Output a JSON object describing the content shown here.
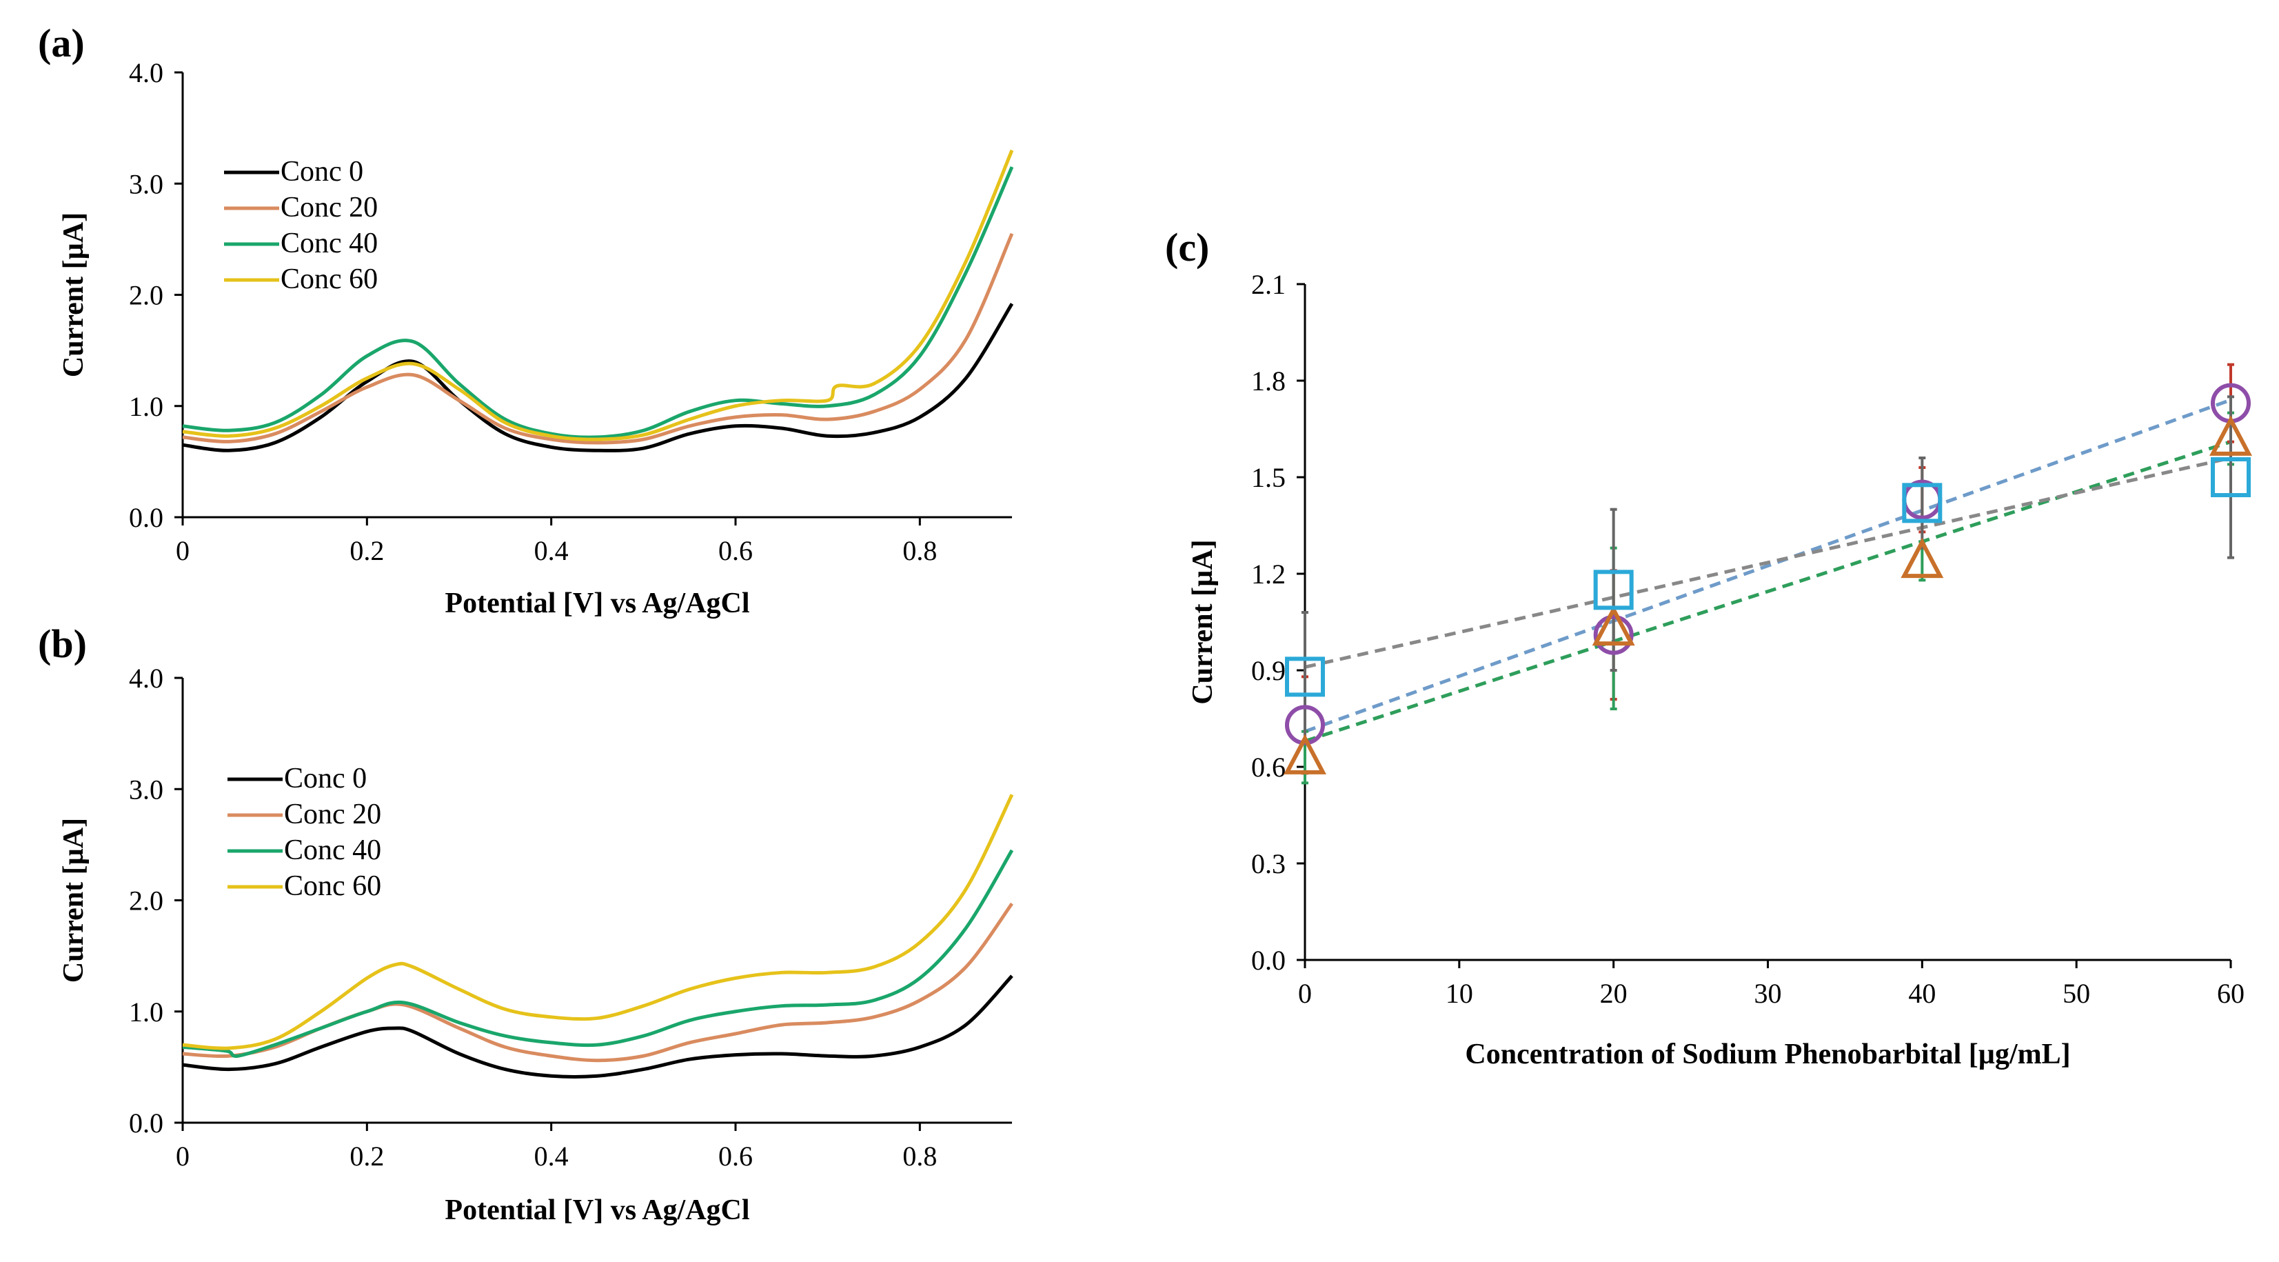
{
  "figure": {
    "panels": [
      "(a)",
      "(b)",
      "(c)"
    ]
  },
  "chart_data": [
    {
      "id": "a",
      "type": "line",
      "panel_label": "(a)",
      "title": "",
      "xlabel": "Potential [V] vs Ag/AgCl",
      "ylabel": "Current [µA]",
      "xlim": [
        0,
        0.9
      ],
      "ylim": [
        0,
        4.0
      ],
      "xticks": [
        0,
        0.2,
        0.4,
        0.6,
        0.8
      ],
      "xtick_labels": [
        "0",
        "0.2",
        "0.4",
        "0.6",
        "0.8"
      ],
      "yticks": [
        0,
        1,
        2,
        3,
        4
      ],
      "ytick_labels": [
        "0.0",
        "1.0",
        "2.0",
        "3.0",
        "4.0"
      ],
      "grid": false,
      "legend_position": "upper-left",
      "series": [
        {
          "name": "Conc 0",
          "color": "#000000",
          "x": [
            0,
            0.05,
            0.1,
            0.15,
            0.2,
            0.25,
            0.3,
            0.35,
            0.4,
            0.45,
            0.5,
            0.55,
            0.6,
            0.65,
            0.7,
            0.75,
            0.8,
            0.85,
            0.9
          ],
          "y": [
            0.65,
            0.6,
            0.67,
            0.9,
            1.22,
            1.4,
            1.05,
            0.75,
            0.63,
            0.6,
            0.62,
            0.75,
            0.82,
            0.8,
            0.73,
            0.76,
            0.9,
            1.25,
            1.92
          ]
        },
        {
          "name": "Conc 20",
          "color": "#D98B5F",
          "x": [
            0,
            0.05,
            0.1,
            0.15,
            0.2,
            0.25,
            0.3,
            0.35,
            0.4,
            0.45,
            0.5,
            0.55,
            0.6,
            0.65,
            0.7,
            0.75,
            0.8,
            0.85,
            0.9
          ],
          "y": [
            0.72,
            0.68,
            0.75,
            0.95,
            1.17,
            1.28,
            1.05,
            0.8,
            0.7,
            0.67,
            0.7,
            0.82,
            0.9,
            0.92,
            0.88,
            0.95,
            1.15,
            1.6,
            2.55
          ]
        },
        {
          "name": "Conc 40",
          "color": "#1AA66B",
          "x": [
            0,
            0.05,
            0.1,
            0.15,
            0.2,
            0.25,
            0.3,
            0.35,
            0.4,
            0.45,
            0.5,
            0.55,
            0.6,
            0.65,
            0.7,
            0.75,
            0.8,
            0.85,
            0.9
          ],
          "y": [
            0.82,
            0.78,
            0.85,
            1.1,
            1.45,
            1.58,
            1.2,
            0.88,
            0.75,
            0.72,
            0.78,
            0.95,
            1.05,
            1.02,
            1.0,
            1.1,
            1.45,
            2.2,
            3.15
          ]
        },
        {
          "name": "Conc 60",
          "color": "#E6C21A",
          "x": [
            0,
            0.05,
            0.1,
            0.15,
            0.2,
            0.25,
            0.3,
            0.35,
            0.4,
            0.45,
            0.5,
            0.55,
            0.6,
            0.65,
            0.7,
            0.71,
            0.75,
            0.8,
            0.85,
            0.9
          ],
          "y": [
            0.77,
            0.73,
            0.8,
            1.0,
            1.25,
            1.38,
            1.15,
            0.85,
            0.73,
            0.7,
            0.74,
            0.88,
            1.0,
            1.05,
            1.05,
            1.18,
            1.2,
            1.55,
            2.3,
            3.3
          ]
        }
      ]
    },
    {
      "id": "b",
      "type": "line",
      "panel_label": "(b)",
      "title": "",
      "xlabel": "Potential [V] vs Ag/AgCl",
      "ylabel": "Current [µA]",
      "xlim": [
        0,
        0.9
      ],
      "ylim": [
        0,
        4.0
      ],
      "xticks": [
        0,
        0.2,
        0.4,
        0.6,
        0.8
      ],
      "xtick_labels": [
        "0",
        "0.2",
        "0.4",
        "0.6",
        "0.8"
      ],
      "yticks": [
        0,
        1,
        2,
        3,
        4
      ],
      "ytick_labels": [
        "0.0",
        "1.0",
        "2.0",
        "3.0",
        "4.0"
      ],
      "grid": false,
      "legend_position": "upper-left",
      "series": [
        {
          "name": "Conc 0",
          "color": "#000000",
          "x": [
            0,
            0.05,
            0.1,
            0.15,
            0.2,
            0.23,
            0.25,
            0.3,
            0.35,
            0.4,
            0.45,
            0.5,
            0.55,
            0.6,
            0.65,
            0.7,
            0.75,
            0.8,
            0.85,
            0.9
          ],
          "y": [
            0.52,
            0.48,
            0.53,
            0.68,
            0.82,
            0.85,
            0.82,
            0.62,
            0.48,
            0.42,
            0.42,
            0.48,
            0.57,
            0.61,
            0.62,
            0.6,
            0.6,
            0.68,
            0.88,
            1.32
          ]
        },
        {
          "name": "Conc 20",
          "color": "#D98B5F",
          "x": [
            0,
            0.05,
            0.1,
            0.15,
            0.2,
            0.24,
            0.3,
            0.35,
            0.4,
            0.45,
            0.5,
            0.55,
            0.6,
            0.65,
            0.7,
            0.75,
            0.8,
            0.85,
            0.9
          ],
          "y": [
            0.62,
            0.6,
            0.68,
            0.85,
            1.0,
            1.06,
            0.85,
            0.68,
            0.6,
            0.56,
            0.6,
            0.72,
            0.8,
            0.88,
            0.9,
            0.95,
            1.1,
            1.4,
            1.97
          ]
        },
        {
          "name": "Conc 40",
          "color": "#1AA66B",
          "x": [
            0,
            0.03,
            0.05,
            0.06,
            0.1,
            0.15,
            0.2,
            0.24,
            0.3,
            0.35,
            0.4,
            0.45,
            0.5,
            0.55,
            0.6,
            0.65,
            0.7,
            0.75,
            0.8,
            0.85,
            0.9
          ],
          "y": [
            0.68,
            0.66,
            0.64,
            0.6,
            0.7,
            0.85,
            1.0,
            1.08,
            0.9,
            0.78,
            0.72,
            0.7,
            0.78,
            0.92,
            1.0,
            1.05,
            1.06,
            1.1,
            1.3,
            1.75,
            2.45
          ]
        },
        {
          "name": "Conc 60",
          "color": "#E6C21A",
          "x": [
            0,
            0.05,
            0.1,
            0.15,
            0.2,
            0.23,
            0.25,
            0.3,
            0.35,
            0.4,
            0.45,
            0.5,
            0.55,
            0.6,
            0.65,
            0.7,
            0.75,
            0.8,
            0.85,
            0.9
          ],
          "y": [
            0.7,
            0.67,
            0.75,
            1.0,
            1.3,
            1.42,
            1.4,
            1.2,
            1.02,
            0.95,
            0.94,
            1.05,
            1.2,
            1.3,
            1.35,
            1.35,
            1.4,
            1.62,
            2.1,
            2.95
          ]
        }
      ]
    },
    {
      "id": "c",
      "type": "scatter",
      "panel_label": "(c)",
      "title": "",
      "xlabel": "Concentration of Sodium Phenobarbital [µg/mL]",
      "ylabel": "Current  [µA]",
      "xlim": [
        0,
        60
      ],
      "ylim": [
        0,
        2.1
      ],
      "xticks": [
        0,
        10,
        20,
        30,
        40,
        50,
        60
      ],
      "xtick_labels": [
        "0",
        "10",
        "20",
        "30",
        "40",
        "50",
        "60"
      ],
      "yticks": [
        0,
        0.3,
        0.6,
        0.9,
        1.2,
        1.5,
        1.8,
        2.1
      ],
      "ytick_labels": [
        "0.0",
        "0.3",
        "0.6",
        "0.9",
        "1.2",
        "1.5",
        "1.8",
        "2.1"
      ],
      "grid": false,
      "legend_position": "none",
      "series": [
        {
          "name": "circle",
          "marker": "circle",
          "color": "#8E4DA8",
          "trend_color": "#6E9BC9",
          "error_color": "#C0392B",
          "x": [
            0,
            20,
            40,
            60
          ],
          "y": [
            0.73,
            1.01,
            1.43,
            1.73
          ],
          "err": [
            0.15,
            0.2,
            0.1,
            0.12
          ],
          "trend": [
            0.71,
            1.74
          ]
        },
        {
          "name": "triangle",
          "marker": "triangle",
          "color": "#C8702A",
          "trend_color": "#2E9E5B",
          "error_color": "#2E9E5B",
          "x": [
            0,
            20,
            40,
            60
          ],
          "y": [
            0.63,
            1.03,
            1.24,
            1.62
          ],
          "err": [
            0.08,
            0.25,
            0.06,
            0.08
          ],
          "trend": [
            0.68,
            1.61
          ]
        },
        {
          "name": "square",
          "marker": "square",
          "color": "#2BA9D8",
          "trend_color": "#888888",
          "error_color": "#666666",
          "x": [
            0,
            20,
            40,
            60
          ],
          "y": [
            0.88,
            1.15,
            1.42,
            1.5
          ],
          "err": [
            0.2,
            0.25,
            0.14,
            0.25
          ],
          "trend": [
            0.91,
            1.56
          ]
        }
      ]
    }
  ]
}
